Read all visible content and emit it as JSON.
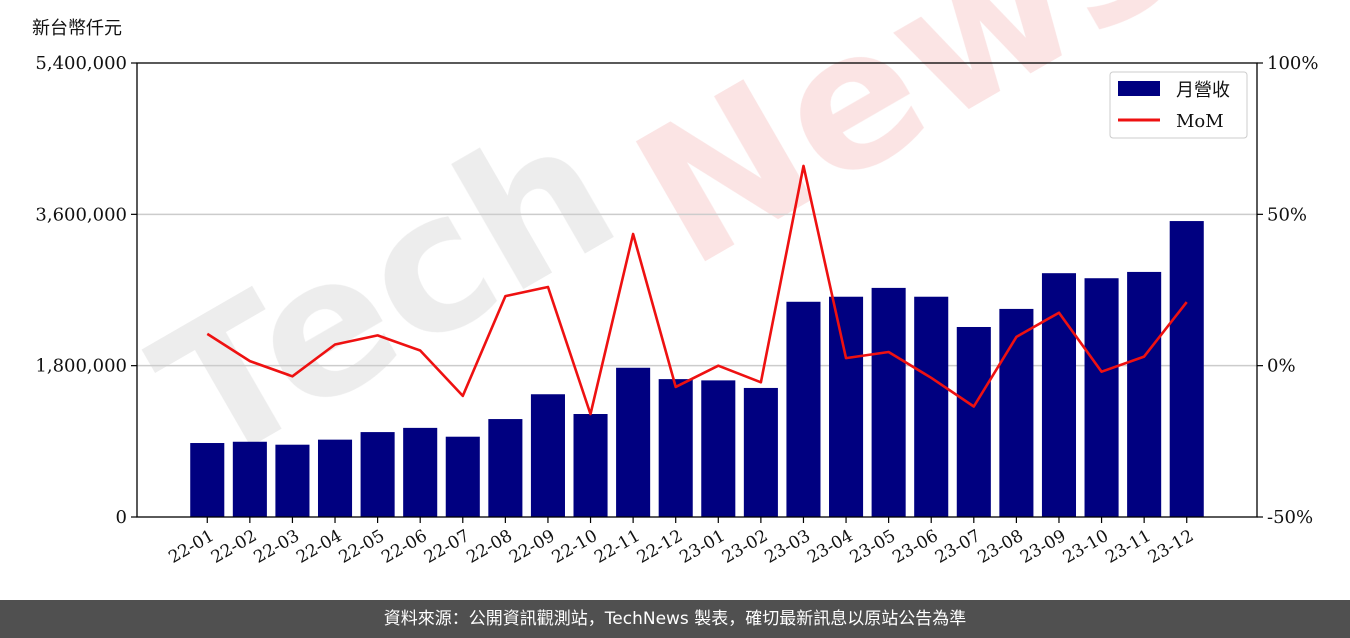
{
  "unit_label": "新台幣仟元",
  "footer_text": "資料來源：公開資訊觀測站，TechNews 製表，確切最新訊息以原站公告為準",
  "watermark": {
    "tech": "Tech",
    "news": "News"
  },
  "colors": {
    "bar": "#000080",
    "line": "#ee1111",
    "grid": "#cccccc",
    "footer_bg": "#505050"
  },
  "chart_data": {
    "type": "bar",
    "categories": [
      "22-01",
      "22-02",
      "22-03",
      "22-04",
      "22-05",
      "22-06",
      "22-07",
      "22-08",
      "22-09",
      "22-10",
      "22-11",
      "22-12",
      "23-01",
      "23-02",
      "23-03",
      "23-04",
      "23-05",
      "23-06",
      "23-07",
      "23-08",
      "23-09",
      "23-10",
      "23-11",
      "23-12"
    ],
    "series": [
      {
        "name": "月營收",
        "axis": "left",
        "type": "bar",
        "values": [
          880000,
          895000,
          860000,
          920000,
          1010000,
          1060000,
          955000,
          1165000,
          1460000,
          1225000,
          1775000,
          1640000,
          1625000,
          1535000,
          2560000,
          2620000,
          2725000,
          2620000,
          2260000,
          2475000,
          2900000,
          2840000,
          2915000,
          3520000
        ]
      },
      {
        "name": "MoM",
        "axis": "right",
        "type": "line",
        "values": [
          10.5,
          1.5,
          -3.5,
          7.0,
          10.0,
          5.0,
          -10.0,
          23.0,
          26.0,
          -16.0,
          43.5,
          -7.0,
          0.0,
          -5.5,
          66.0,
          2.5,
          4.5,
          -4.0,
          -13.5,
          9.5,
          17.5,
          -2.0,
          3.0,
          21.0
        ]
      }
    ],
    "y_left": {
      "ticks": [
        "0",
        "1,800,000",
        "3,600,000",
        "5,400,000"
      ],
      "tick_values": [
        0,
        1800000,
        3600000,
        5400000
      ],
      "ylim": [
        0,
        5400000
      ]
    },
    "y_right": {
      "ticks": [
        "-50%",
        "0%",
        "50%",
        "100%"
      ],
      "tick_values": [
        -50,
        0,
        50,
        100
      ],
      "ylim": [
        -50,
        100
      ]
    },
    "grid": "horizontal",
    "legend": {
      "placement": "top-right",
      "entries": [
        "月營收",
        "MoM"
      ]
    }
  }
}
